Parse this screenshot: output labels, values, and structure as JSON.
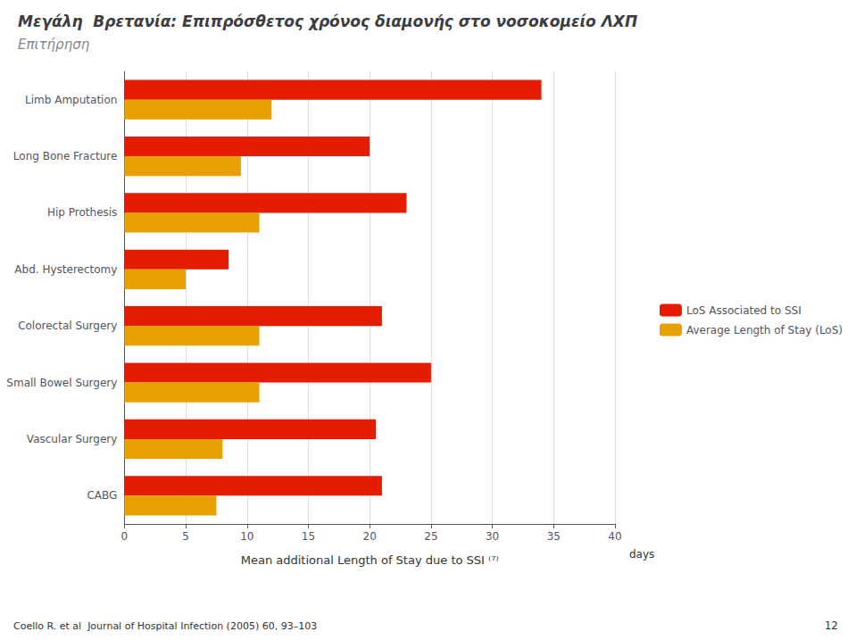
{
  "chart_data": {
    "type": "bar",
    "orientation": "horizontal",
    "title": "Μεγάλη  Βρετανία: Επιπρόσθετος χρόνος διαμονής στο νοσοκομείο ΛΧΠ",
    "subtitle": "Επιτήρηση",
    "categories": [
      "CABG",
      "Vascular Surgery",
      "Small Bowel Surgery",
      "Colorectal Surgery",
      "Abd. Hysterectomy",
      "Hip Prothesis",
      "Long Bone Fracture",
      "Limb Amputation"
    ],
    "series": [
      {
        "name": "LoS Associated to SSI",
        "color": "#e61c00",
        "values": [
          21,
          20.5,
          25,
          21,
          8.5,
          23,
          20,
          34
        ]
      },
      {
        "name": "Average Length of Stay (LoS)",
        "color": "#e8a000",
        "values": [
          7.5,
          8,
          11,
          11,
          5,
          11,
          9.5,
          12
        ]
      }
    ],
    "x_label": "Mean additional Length of Stay due to SSI ⁽⁷⁾",
    "x_unit": "days",
    "xlim": [
      0,
      40
    ],
    "xticks": [
      0,
      5,
      10,
      15,
      20,
      25,
      30,
      35,
      40
    ],
    "grid": true,
    "legend": "right",
    "footnote": "Coello R. et al  Journal of Hospital Infection (2005) 60, 93–103",
    "page_number": "12"
  }
}
